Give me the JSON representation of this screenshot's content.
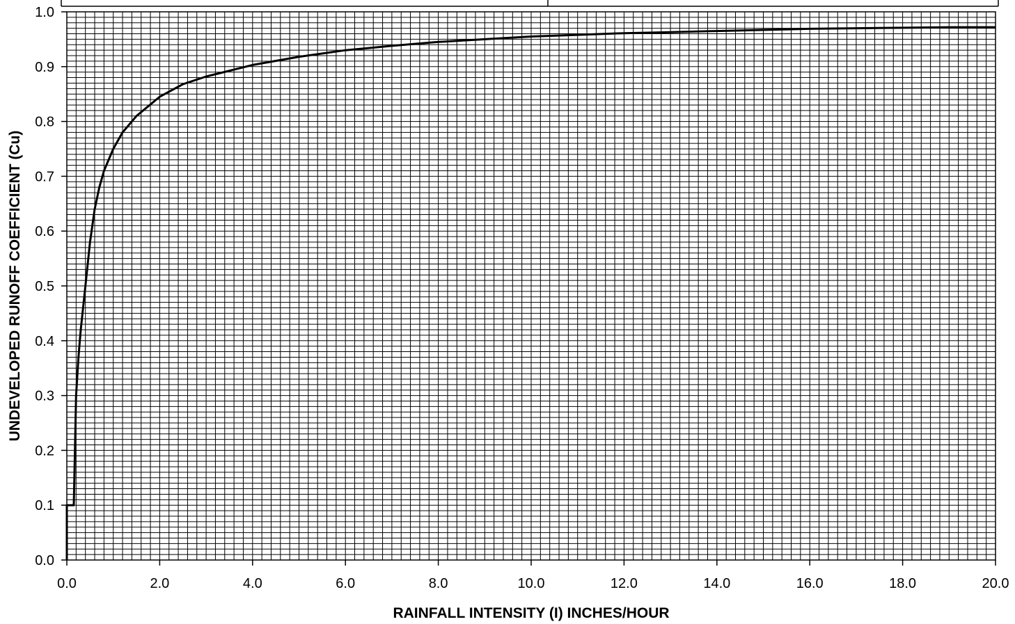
{
  "chart_data": {
    "type": "line",
    "xlabel": "RAINFALL INTENSITY (I) INCHES/HOUR",
    "ylabel": "UNDEVELOPED RUNOFF COEFFICIENT (Cu)",
    "xlim": [
      0,
      20
    ],
    "ylim": [
      0,
      1
    ],
    "grid": true,
    "x_ticks": [
      "0.0",
      "2.0",
      "4.0",
      "6.0",
      "8.0",
      "10.0",
      "12.0",
      "14.0",
      "16.0",
      "18.0",
      "20.0"
    ],
    "y_ticks": [
      "0.0",
      "0.1",
      "0.2",
      "0.3",
      "0.4",
      "0.5",
      "0.6",
      "0.7",
      "0.8",
      "0.9",
      "1.0"
    ],
    "series": [
      {
        "x": [
          0,
          0,
          0.15,
          0.2,
          0.25,
          0.3,
          0.4,
          0.5,
          0.6,
          0.7,
          0.8,
          1.0,
          1.2,
          1.5,
          2.0,
          2.5,
          3.0,
          4.0,
          5.0,
          6.0,
          7.0,
          8.0,
          9.0,
          10.0,
          11.0,
          12.0,
          13.0,
          14.0,
          15.0,
          16.0,
          17.0,
          18.0,
          19.0,
          20.0
        ],
        "y": [
          0.0,
          0.1,
          0.1,
          0.3,
          0.37,
          0.42,
          0.5,
          0.58,
          0.64,
          0.68,
          0.71,
          0.75,
          0.78,
          0.81,
          0.845,
          0.868,
          0.882,
          0.903,
          0.918,
          0.93,
          0.938,
          0.945,
          0.95,
          0.955,
          0.958,
          0.961,
          0.963,
          0.965,
          0.967,
          0.969,
          0.97,
          0.971,
          0.972,
          0.972
        ]
      }
    ]
  }
}
